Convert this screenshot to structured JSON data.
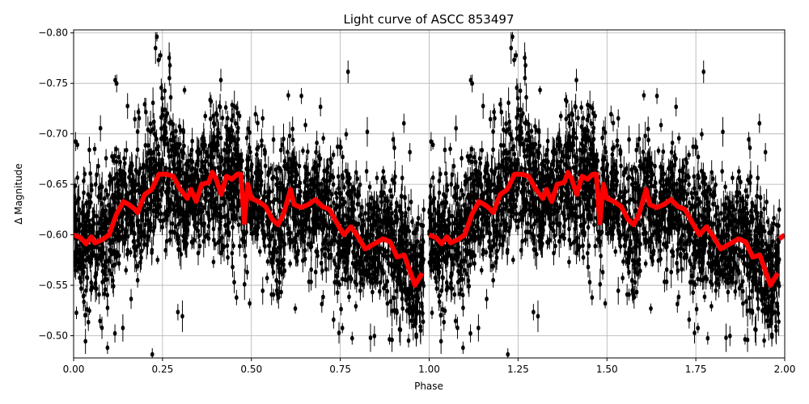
{
  "chart_data": {
    "type": "scatter",
    "title": "Light curve of ASCC 853497",
    "xlabel": "Phase",
    "ylabel": "Δ Magnitude",
    "xlim": [
      0.0,
      2.0
    ],
    "ylim": [
      -0.478,
      -0.803
    ],
    "y_inverted": true,
    "grid": true,
    "xticks": [
      "0.00",
      "0.25",
      "0.50",
      "0.75",
      "1.00",
      "1.25",
      "1.50",
      "1.75",
      "2.00"
    ],
    "yticks": [
      "−0.80",
      "−0.75",
      "−0.70",
      "−0.65",
      "−0.60",
      "−0.55",
      "−0.50"
    ],
    "ytick_values": [
      -0.8,
      -0.75,
      -0.7,
      -0.65,
      -0.6,
      -0.55,
      -0.5
    ],
    "xtick_values": [
      0,
      0.25,
      0.5,
      0.75,
      1.0,
      1.25,
      1.5,
      1.75,
      2.0
    ],
    "points_color": "#000000",
    "curve_color": "#ff0000",
    "curve": {
      "phase": [
        0.0,
        0.02,
        0.035,
        0.05,
        0.06,
        0.08,
        0.1,
        0.12,
        0.14,
        0.155,
        0.17,
        0.18,
        0.2,
        0.22,
        0.24,
        0.26,
        0.28,
        0.3,
        0.32,
        0.33,
        0.345,
        0.36,
        0.38,
        0.39,
        0.4,
        0.415,
        0.43,
        0.445,
        0.46,
        0.47,
        0.48,
        0.49,
        0.5,
        0.52,
        0.54,
        0.56,
        0.575,
        0.59,
        0.61,
        0.62,
        0.64,
        0.66,
        0.68,
        0.7,
        0.72,
        0.74,
        0.76,
        0.78,
        0.8,
        0.82,
        0.84,
        0.87,
        0.89,
        0.91,
        0.93,
        0.95,
        0.96,
        0.98
      ],
      "magnitude": [
        -0.6,
        -0.597,
        -0.591,
        -0.598,
        -0.592,
        -0.595,
        -0.6,
        -0.62,
        -0.633,
        -0.63,
        -0.626,
        -0.622,
        -0.64,
        -0.645,
        -0.66,
        -0.66,
        -0.658,
        -0.645,
        -0.636,
        -0.645,
        -0.633,
        -0.65,
        -0.652,
        -0.662,
        -0.656,
        -0.64,
        -0.658,
        -0.655,
        -0.66,
        -0.66,
        -0.612,
        -0.65,
        -0.636,
        -0.633,
        -0.628,
        -0.615,
        -0.61,
        -0.62,
        -0.645,
        -0.63,
        -0.627,
        -0.63,
        -0.635,
        -0.628,
        -0.625,
        -0.612,
        -0.6,
        -0.608,
        -0.598,
        -0.586,
        -0.59,
        -0.596,
        -0.593,
        -0.578,
        -0.58,
        -0.56,
        -0.55,
        -0.562
      ],
      "repeat_period": 1.0
    }
  }
}
